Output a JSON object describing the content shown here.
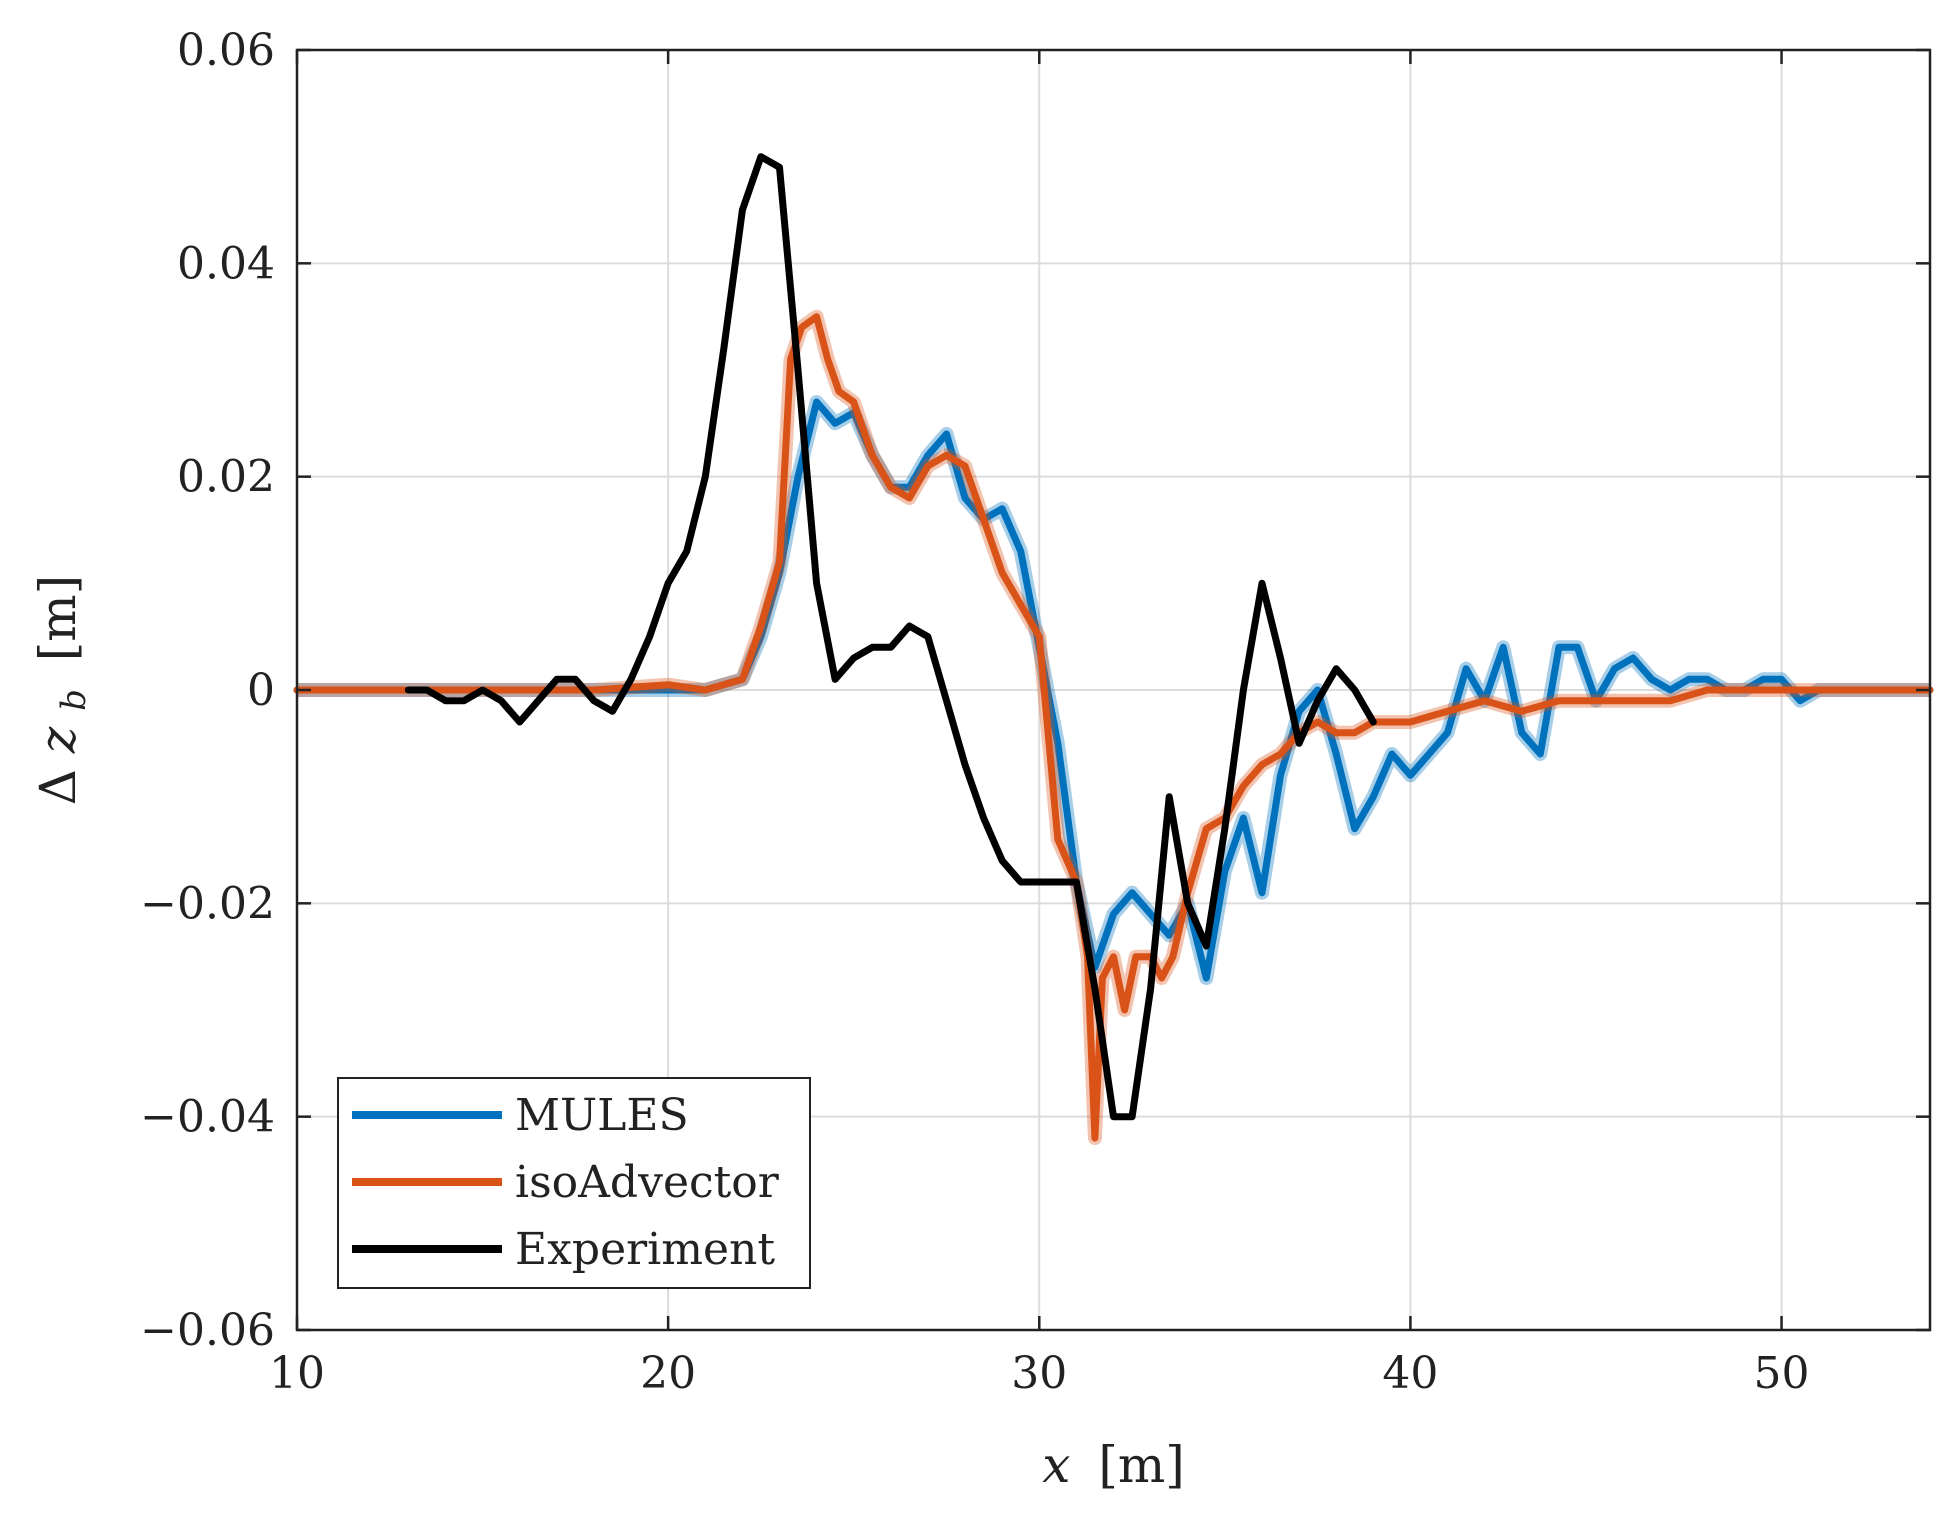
{
  "chart_data": {
    "type": "line",
    "title": "",
    "xlabel": "x [m]",
    "ylabel": "Δz_b [m]",
    "xlabel_parts": {
      "var": "x",
      "unit": "[m]"
    },
    "ylabel_parts": {
      "delta": "Δ",
      "var": "z",
      "sub": "b",
      "unit": "[m]"
    },
    "xlim": [
      10,
      54
    ],
    "ylim": [
      -0.06,
      0.06
    ],
    "xticks": [
      10,
      20,
      30,
      40,
      50
    ],
    "xtick_labels": [
      "10",
      "20",
      "30",
      "40",
      "50"
    ],
    "yticks": [
      0.06,
      0.04,
      0.02,
      0,
      -0.02,
      -0.04,
      -0.06
    ],
    "ytick_labels": [
      "0.06",
      "0.04",
      "0.02",
      "0",
      "−0.02",
      "−0.04",
      "−0.06"
    ],
    "grid": true,
    "legend_position": "bottom-left",
    "series": [
      {
        "name": "MULES",
        "color": "#0072BD",
        "x": [
          10,
          12,
          14,
          16,
          18,
          20,
          21,
          22,
          22.5,
          23,
          23.5,
          24,
          24.5,
          25,
          25.5,
          26,
          26.5,
          27,
          27.5,
          28,
          28.5,
          29,
          29.5,
          30,
          30.5,
          31,
          31.5,
          32,
          32.5,
          33,
          33.5,
          34,
          34.5,
          35,
          35.5,
          36,
          36.5,
          37,
          37.5,
          38,
          38.5,
          39,
          39.5,
          40,
          40.5,
          41,
          41.5,
          42,
          42.5,
          43,
          43.5,
          44,
          44.5,
          45,
          45.5,
          46,
          46.5,
          47,
          47.5,
          48,
          48.5,
          49,
          49.5,
          50,
          50.5,
          51,
          52,
          54
        ],
        "values": [
          0,
          0,
          0,
          0,
          0,
          0,
          0,
          0.001,
          0.005,
          0.011,
          0.02,
          0.027,
          0.025,
          0.026,
          0.022,
          0.019,
          0.019,
          0.022,
          0.024,
          0.018,
          0.016,
          0.017,
          0.013,
          0.004,
          -0.005,
          -0.018,
          -0.026,
          -0.021,
          -0.019,
          -0.021,
          -0.023,
          -0.02,
          -0.027,
          -0.017,
          -0.012,
          -0.019,
          -0.008,
          -0.002,
          0.0,
          -0.006,
          -0.013,
          -0.01,
          -0.006,
          -0.008,
          -0.006,
          -0.004,
          0.002,
          -0.001,
          0.004,
          -0.004,
          -0.006,
          0.004,
          0.004,
          -0.001,
          0.002,
          0.003,
          0.001,
          0.0,
          0.001,
          0.001,
          0.0,
          0.0,
          0.001,
          0.001,
          -0.001,
          0,
          0,
          0
        ]
      },
      {
        "name": "isoAdvector",
        "color": "#D95319",
        "x": [
          10,
          12,
          14,
          16,
          18,
          20,
          21,
          22,
          22.5,
          23,
          23.3,
          23.6,
          24,
          24.3,
          24.6,
          25,
          25.5,
          26,
          26.5,
          27,
          27.5,
          28,
          28.5,
          29,
          29.5,
          30,
          30.5,
          31,
          31.3,
          31.5,
          31.7,
          32,
          32.3,
          32.6,
          33,
          33.3,
          33.6,
          34,
          34.5,
          35,
          35.5,
          36,
          36.5,
          37,
          37.5,
          38,
          38.5,
          39,
          40,
          41,
          42,
          43,
          44,
          45,
          46,
          47,
          48,
          49,
          50,
          51,
          54
        ],
        "values": [
          0,
          0,
          0,
          0,
          0,
          0.0005,
          0,
          0.001,
          0.006,
          0.012,
          0.031,
          0.034,
          0.035,
          0.031,
          0.028,
          0.027,
          0.022,
          0.019,
          0.018,
          0.021,
          0.022,
          0.021,
          0.016,
          0.011,
          0.008,
          0.005,
          -0.014,
          -0.018,
          -0.025,
          -0.042,
          -0.027,
          -0.025,
          -0.03,
          -0.025,
          -0.025,
          -0.027,
          -0.025,
          -0.019,
          -0.013,
          -0.012,
          -0.009,
          -0.007,
          -0.006,
          -0.004,
          -0.003,
          -0.004,
          -0.004,
          -0.003,
          -0.003,
          -0.002,
          -0.001,
          -0.002,
          -0.001,
          -0.001,
          -0.001,
          -0.001,
          0.0,
          0.0,
          0.0,
          0,
          0
        ]
      },
      {
        "name": "Experiment",
        "color": "#000000",
        "x": [
          13,
          13.5,
          14,
          14.5,
          15,
          15.5,
          16,
          16.5,
          17,
          17.5,
          18,
          18.5,
          19,
          19.5,
          20,
          20.5,
          21,
          21.5,
          22,
          22.5,
          23,
          23.5,
          24,
          24.5,
          25,
          25.5,
          26,
          26.5,
          27,
          27.5,
          28,
          28.5,
          29,
          29.5,
          30,
          30.5,
          31,
          31.5,
          32,
          32.5,
          33,
          33.5,
          34,
          34.5,
          35,
          35.5,
          36,
          36.5,
          37,
          37.5,
          38,
          38.5,
          39
        ],
        "values": [
          0.0,
          0.0,
          -0.001,
          -0.001,
          0.0,
          -0.001,
          -0.003,
          -0.001,
          0.001,
          0.001,
          -0.001,
          -0.002,
          0.001,
          0.005,
          0.01,
          0.013,
          0.02,
          0.032,
          0.045,
          0.05,
          0.049,
          0.03,
          0.01,
          0.001,
          0.003,
          0.004,
          0.004,
          0.006,
          0.005,
          -0.001,
          -0.007,
          -0.012,
          -0.016,
          -0.018,
          -0.018,
          -0.018,
          -0.018,
          -0.028,
          -0.04,
          -0.04,
          -0.028,
          -0.01,
          -0.02,
          -0.024,
          -0.013,
          0.0,
          0.01,
          0.003,
          -0.005,
          -0.001,
          0.002,
          0.0,
          -0.003
        ]
      }
    ]
  }
}
